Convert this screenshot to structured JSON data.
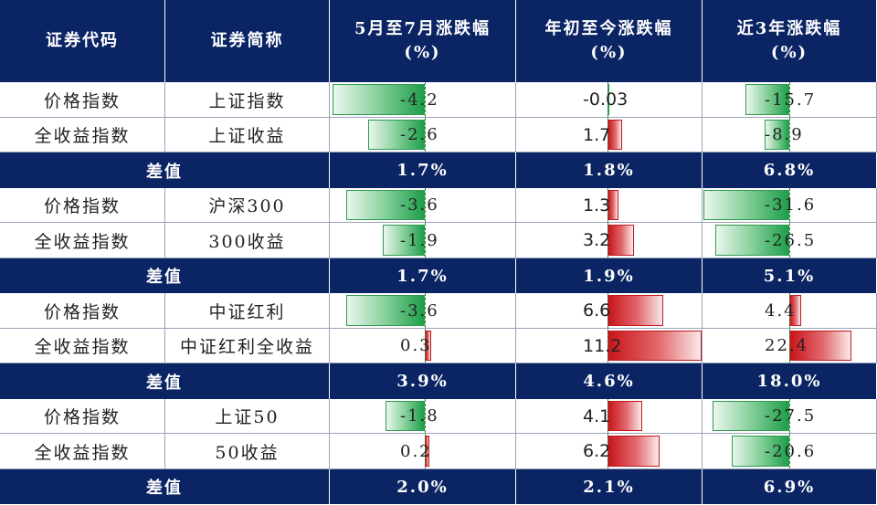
{
  "header": {
    "code": "证券代码",
    "name": "证券简称",
    "col1_line1": "5月至7月涨跌幅",
    "col1_line2": "(%)",
    "col2_line1": "年初至今涨跌幅",
    "col2_line2": "(%)",
    "col3_line1": "近3年涨跌幅",
    "col3_line2": "(%)"
  },
  "colors": {
    "header_bg": "#0b2463",
    "positive": "#c8141a",
    "negative": "#1e9e4a"
  },
  "groups": [
    {
      "rows": [
        {
          "type": "价格指数",
          "name": "上证指数",
          "values": [
            "-4.2",
            "-0.03",
            "-15.7"
          ]
        },
        {
          "type": "全收益指数",
          "name": "上证收益",
          "values": [
            "-2.6",
            "1.7",
            "-8.9"
          ]
        }
      ],
      "diff": {
        "label": "差值",
        "values": [
          "1.7%",
          "1.8%",
          "6.8%"
        ]
      }
    },
    {
      "rows": [
        {
          "type": "价格指数",
          "name": "沪深300",
          "values": [
            "-3.6",
            "1.3",
            "-31.6"
          ]
        },
        {
          "type": "全收益指数",
          "name": "300收益",
          "values": [
            "-1.9",
            "3.2",
            "-26.5"
          ]
        }
      ],
      "diff": {
        "label": "差值",
        "values": [
          "1.7%",
          "1.9%",
          "5.1%"
        ]
      }
    },
    {
      "rows": [
        {
          "type": "价格指数",
          "name": "中证红利",
          "values": [
            "-3.6",
            "6.6",
            "4.4"
          ]
        },
        {
          "type": "全收益指数",
          "name": "中证红利全收益",
          "values": [
            "0.3",
            "11.2",
            "22.4"
          ]
        }
      ],
      "diff": {
        "label": "差值",
        "values": [
          "3.9%",
          "4.6%",
          "18.0%"
        ]
      }
    },
    {
      "rows": [
        {
          "type": "价格指数",
          "name": "上证50",
          "values": [
            "-1.8",
            "4.1",
            "-27.5"
          ]
        },
        {
          "type": "全收益指数",
          "name": "50收益",
          "values": [
            "0.2",
            "6.2",
            "-20.6"
          ]
        }
      ],
      "diff": {
        "label": "差值",
        "values": [
          "2.0%",
          "2.1%",
          "6.9%"
        ]
      }
    }
  ]
}
